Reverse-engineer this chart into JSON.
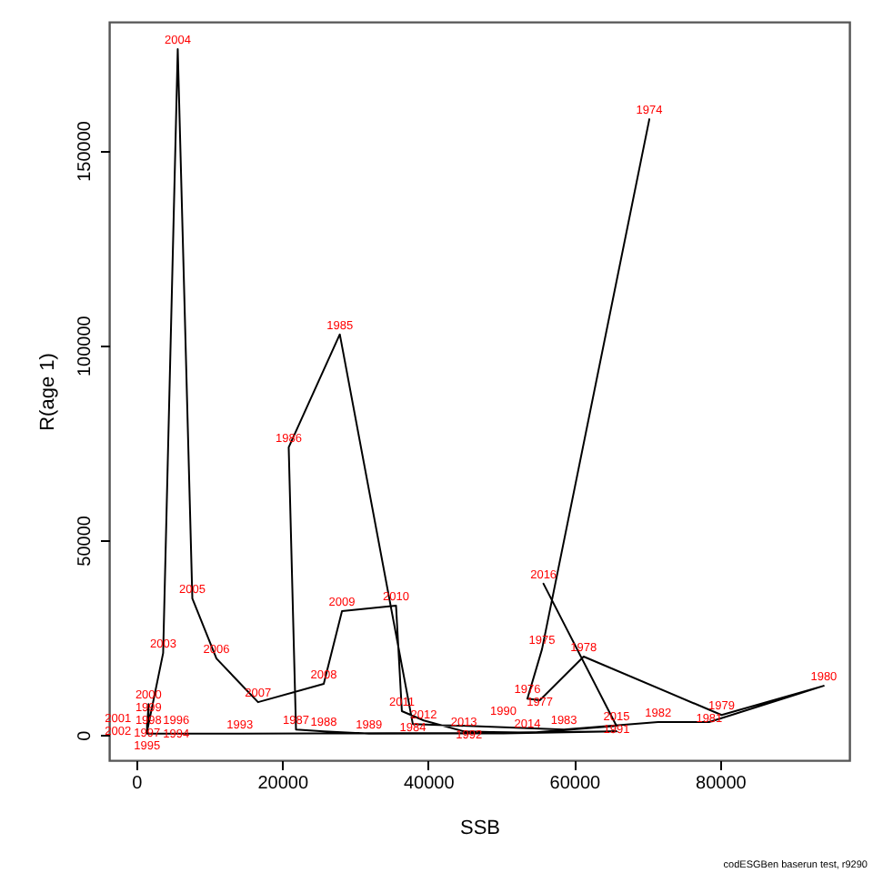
{
  "chart_data": {
    "type": "line",
    "xlabel": "SSB",
    "ylabel": "R(age 1)",
    "annotations": [
      "codESGBen baserun test, r9290",
      {
        "text": "1974",
        "x": 70300,
        "y": 158000
      },
      {
        "text": "1975",
        "x": 55600,
        "y": 22000
      },
      {
        "text": "1976",
        "x": 53600,
        "y": 9300
      },
      {
        "text": "1977",
        "x": 55300,
        "y": 8900
      },
      {
        "text": "1978",
        "x": 61300,
        "y": 20100
      },
      {
        "text": "1979",
        "x": 80200,
        "y": 5100
      },
      {
        "text": "1980",
        "x": 94200,
        "y": 12600
      },
      {
        "text": "1981",
        "x": 78500,
        "y": 3300
      },
      {
        "text": "1982",
        "x": 71500,
        "y": 3300
      },
      {
        "text": "1983",
        "x": 58600,
        "y": 1400
      },
      {
        "text": "1984",
        "x": 37900,
        "y": 2800
      },
      {
        "text": "1985",
        "x": 27900,
        "y": 102800
      },
      {
        "text": "1986",
        "x": 20900,
        "y": 73800
      },
      {
        "text": "1987",
        "x": 21900,
        "y": 1400
      },
      {
        "text": "1988",
        "x": 25700,
        "y": 900
      },
      {
        "text": "1989",
        "x": 31900,
        "y": 300
      },
      {
        "text": "1990",
        "x": 50300,
        "y": 400
      },
      {
        "text": "1991",
        "x": 65800,
        "y": 900
      },
      {
        "text": "1992",
        "x": 45600,
        "y": 500
      },
      {
        "text": "1993",
        "x": 14200,
        "y": 300
      },
      {
        "text": "1994",
        "x": 1500,
        "y": 300
      },
      {
        "text": "1995",
        "x": 1500,
        "y": 600
      },
      {
        "text": "1996",
        "x": 1500,
        "y": 1400
      },
      {
        "text": "1997",
        "x": 1500,
        "y": 2800
      },
      {
        "text": "1998",
        "x": 1700,
        "y": 4700
      },
      {
        "text": "1999",
        "x": 1700,
        "y": 6100
      },
      {
        "text": "2000",
        "x": 1700,
        "y": 7900
      },
      {
        "text": "2001",
        "x": 1500,
        "y": 1900
      },
      {
        "text": "2002",
        "x": 1500,
        "y": 900
      },
      {
        "text": "2003",
        "x": 3700,
        "y": 21000
      },
      {
        "text": "2004",
        "x": 5700,
        "y": 176000
      },
      {
        "text": "2005",
        "x": 7700,
        "y": 35000
      },
      {
        "text": "2006",
        "x": 11000,
        "y": 19600
      },
      {
        "text": "2007",
        "x": 16700,
        "y": 8400
      },
      {
        "text": "2008",
        "x": 25700,
        "y": 13100
      },
      {
        "text": "2009",
        "x": 28200,
        "y": 31800
      },
      {
        "text": "2010",
        "x": 35600,
        "y": 33200
      },
      {
        "text": "2011",
        "x": 36400,
        "y": 6100
      },
      {
        "text": "2012",
        "x": 39400,
        "y": 3700
      },
      {
        "text": "2013",
        "x": 44900,
        "y": 900
      },
      {
        "text": "2014",
        "x": 53600,
        "y": 500
      },
      {
        "text": "2015",
        "x": 65800,
        "y": 2300
      },
      {
        "text": "2016",
        "x": 55800,
        "y": 38800
      }
    ],
    "x": [
      70300,
      55600,
      53600,
      55300,
      61300,
      80200,
      94200,
      78500,
      71500,
      58600,
      37900,
      27900,
      20900,
      21900,
      25700,
      31900,
      50300,
      65800,
      45600,
      14200,
      1500,
      1500,
      1500,
      1500,
      1700,
      1700,
      1700,
      1500,
      1500,
      3700,
      5700,
      7700,
      11000,
      16700,
      25700,
      28200,
      35600,
      36400,
      39400,
      44900,
      53600,
      65800,
      55800
    ],
    "series": [
      {
        "color": "#000000",
        "values": [
          158000,
          22000,
          9300,
          8900,
          20100,
          5100,
          12600,
          3300,
          3300,
          1400,
          2800,
          102800,
          73800,
          1400,
          900,
          300,
          400,
          900,
          500,
          300,
          300,
          600,
          1400,
          2800,
          4700,
          6100,
          7900,
          1900,
          900,
          21000,
          176000,
          35000,
          19600,
          8400,
          13100,
          31800,
          33200,
          6100,
          3700,
          900,
          500,
          2300,
          38800
        ]
      }
    ],
    "xlim": [
      -3700,
      97700
    ],
    "xticks": [
      0,
      20000,
      40000,
      60000,
      80000
    ],
    "ylim": [
      -6500,
      183000
    ],
    "yticks": [
      0,
      50000,
      100000,
      150000
    ],
    "grid": false
  }
}
